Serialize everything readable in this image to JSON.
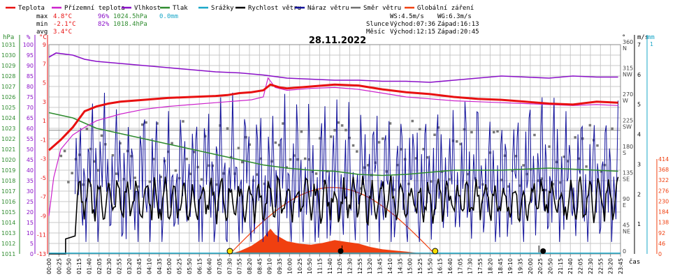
{
  "chart_data": {
    "type": "line",
    "title": "28.11.2022",
    "legend": [
      {
        "label": "Teplota",
        "color": "#e81010"
      },
      {
        "label": "Přízemní teplota",
        "color": "#cc22cc"
      },
      {
        "label": "Vlhkost",
        "color": "#8a10c8"
      },
      {
        "label": "Tlak",
        "color": "#2e8b2e"
      },
      {
        "label": "Srážky",
        "color": "#1aa7c8"
      },
      {
        "label": "Rychlost větru",
        "color": "#000000"
      },
      {
        "label": "Náraz větru",
        "color": "#10109a"
      },
      {
        "label": "Směr větru",
        "color": "#707070"
      },
      {
        "label": "Globální záření",
        "color": "#f04010"
      }
    ],
    "stats": {
      "max": {
        "label": "max",
        "temp": "4.8°C",
        "hum": "96%",
        "press": "1024.5hPa",
        "rain": "0.0mm"
      },
      "min": {
        "label": "min",
        "temp": "-2.1°C",
        "hum": "82%",
        "press": "1018.4hPa"
      },
      "avg": {
        "label": "avg",
        "temp": "3.4°C"
      }
    },
    "sun_info": {
      "ws": "WS:4.5m/s",
      "wg": "WG:6.3m/s",
      "sun_label": "Slunce",
      "sun_rise": "Východ:07:36",
      "sun_set": "Západ:16:13",
      "moon_label": "Měsíc",
      "moon_rise": "Východ:12:15",
      "moon_set": "Západ:20:45"
    },
    "axes": {
      "pressure": {
        "unit": "hPa",
        "ticks": [
          "1031",
          "1030",
          "1029",
          "1028",
          "1027",
          "1026",
          "1025",
          "1024",
          "1023",
          "1022",
          "1021",
          "1020",
          "1019",
          "1018",
          "1017",
          "1016",
          "1015",
          "1014",
          "1013",
          "1012",
          "1011"
        ]
      },
      "humidity": {
        "unit": "%",
        "ticks": [
          "100",
          "95",
          "90",
          "85",
          "80",
          "75",
          "70",
          "65",
          "60",
          "55",
          "50",
          "45",
          "40",
          "35",
          "30",
          "25",
          "20",
          "15",
          "10",
          "5",
          "0"
        ]
      },
      "temperature": {
        "unit": "°C",
        "ticks": [
          "9",
          "7",
          "5",
          "3",
          "1",
          "-1",
          "-3",
          "-5",
          "-7",
          "-9",
          "-11",
          "-13"
        ]
      },
      "direction": {
        "unit": "°",
        "ticks": [
          "360\nN",
          "315\nNW",
          "270\nW",
          "225\nSW",
          "180\nS",
          "135\nSE",
          "90\nE",
          "45\nNE",
          "0"
        ]
      },
      "wind": {
        "unit": "m/s",
        "ticks": [
          "7",
          "6",
          "5",
          "4",
          "3",
          "2",
          "1",
          "0"
        ]
      },
      "rain": {
        "unit": "mm",
        "ticks": [
          "1",
          "0"
        ]
      },
      "radiation": {
        "ticks": [
          "414",
          "368",
          "322",
          "276",
          "230",
          "184",
          "138",
          "92",
          "46",
          "0"
        ]
      },
      "x": {
        "unit": "čas",
        "ticks": [
          "00:00",
          "00:25",
          "00:50",
          "01:15",
          "01:40",
          "02:05",
          "02:30",
          "02:55",
          "03:20",
          "03:45",
          "04:10",
          "04:35",
          "05:00",
          "05:25",
          "05:50",
          "06:15",
          "06:40",
          "07:05",
          "07:30",
          "07:55",
          "08:20",
          "08:45",
          "09:10",
          "09:35",
          "10:00",
          "10:25",
          "10:50",
          "11:15",
          "11:40",
          "12:05",
          "12:30",
          "12:55",
          "13:20",
          "13:45",
          "14:10",
          "14:35",
          "15:00",
          "15:25",
          "15:50",
          "16:15",
          "16:40",
          "17:05",
          "17:30",
          "17:55",
          "18:20",
          "18:45",
          "19:10",
          "19:35",
          "20:00",
          "20:25",
          "20:50",
          "21:15",
          "21:40",
          "22:05",
          "22:30",
          "22:55",
          "23:20",
          "23:45"
        ]
      }
    },
    "x_range": [
      0,
      24
    ],
    "series": [
      {
        "name": "Teplota",
        "x": [
          0,
          0.5,
          1,
          1.5,
          2,
          2.5,
          3,
          4,
          5,
          6,
          7,
          7.5,
          8,
          8.5,
          9,
          9.3,
          9.7,
          10,
          11,
          12,
          13,
          13.5,
          14,
          15,
          16,
          17,
          18,
          19,
          20,
          21,
          22,
          23,
          23.9
        ],
        "values": [
          -2.1,
          -1,
          0.3,
          2,
          2.5,
          2.8,
          3,
          3.2,
          3.4,
          3.5,
          3.6,
          3.7,
          3.9,
          4.0,
          4.2,
          4.8,
          4.5,
          4.4,
          4.6,
          4.8,
          4.7,
          4.5,
          4.3,
          4.0,
          3.8,
          3.5,
          3.3,
          3.2,
          3.0,
          2.8,
          2.7,
          3.0,
          2.9
        ]
      },
      {
        "name": "Přízemní teplota",
        "x": [
          0,
          0.2,
          0.5,
          1,
          1.5,
          2,
          3,
          4,
          5,
          6,
          7,
          7.5,
          8,
          8.5,
          9,
          9.2,
          9.5,
          10,
          11,
          12,
          13,
          14,
          15,
          16,
          17,
          18,
          19,
          20,
          21,
          22,
          23,
          23.9
        ],
        "values": [
          -9,
          -5,
          -2,
          -0.5,
          0.3,
          1,
          1.7,
          2.2,
          2.5,
          2.7,
          2.9,
          3.0,
          3.1,
          3.2,
          3.5,
          5.5,
          4.5,
          4.2,
          4.4,
          4.5,
          4.3,
          3.9,
          3.5,
          3.3,
          3.1,
          3.0,
          2.9,
          2.8,
          2.7,
          2.6,
          2.7,
          2.6
        ]
      },
      {
        "name": "Vlhkost",
        "x": [
          0,
          0.3,
          1,
          1.5,
          2,
          3,
          4,
          5,
          6,
          7,
          8,
          9,
          10,
          11,
          12,
          13,
          14,
          15,
          16,
          17,
          18,
          19,
          20,
          21,
          22,
          23,
          23.9
        ],
        "values": [
          94,
          96,
          95,
          93,
          92,
          91,
          90,
          89,
          88,
          87,
          86.5,
          85.5,
          84,
          83.5,
          83,
          83,
          82.5,
          82.5,
          82,
          83,
          84,
          85,
          84.5,
          84,
          85,
          84.5,
          84.5
        ]
      },
      {
        "name": "Tlak",
        "x": [
          0,
          1,
          2,
          3,
          4,
          5,
          6,
          7,
          8,
          9,
          10,
          11,
          12,
          13,
          14,
          15,
          16,
          17,
          18,
          19,
          20,
          21,
          22,
          23,
          23.9
        ],
        "values": [
          1024.5,
          1024,
          1023,
          1022.5,
          1022,
          1021.5,
          1021,
          1020.5,
          1020,
          1019.5,
          1019.2,
          1019,
          1018.9,
          1018.6,
          1018.5,
          1018.6,
          1018.8,
          1019,
          1019,
          1019,
          1019.1,
          1019.2,
          1019.1,
          1019,
          1018.9
        ]
      },
      {
        "name": "Globální záření",
        "x": [
          7.6,
          8,
          8.5,
          9,
          9.3,
          9.5,
          10,
          10.5,
          11,
          11.5,
          12,
          12.5,
          13,
          13.5,
          14,
          14.5,
          15,
          15.5,
          16.2
        ],
        "values": [
          0,
          12,
          35,
          70,
          110,
          85,
          55,
          45,
          40,
          48,
          60,
          52,
          45,
          30,
          20,
          15,
          10,
          4,
          0
        ]
      }
    ],
    "sun_markers": [
      "07:36",
      "16:13"
    ],
    "moon_markers": [
      "12:15",
      "20:45"
    ]
  }
}
